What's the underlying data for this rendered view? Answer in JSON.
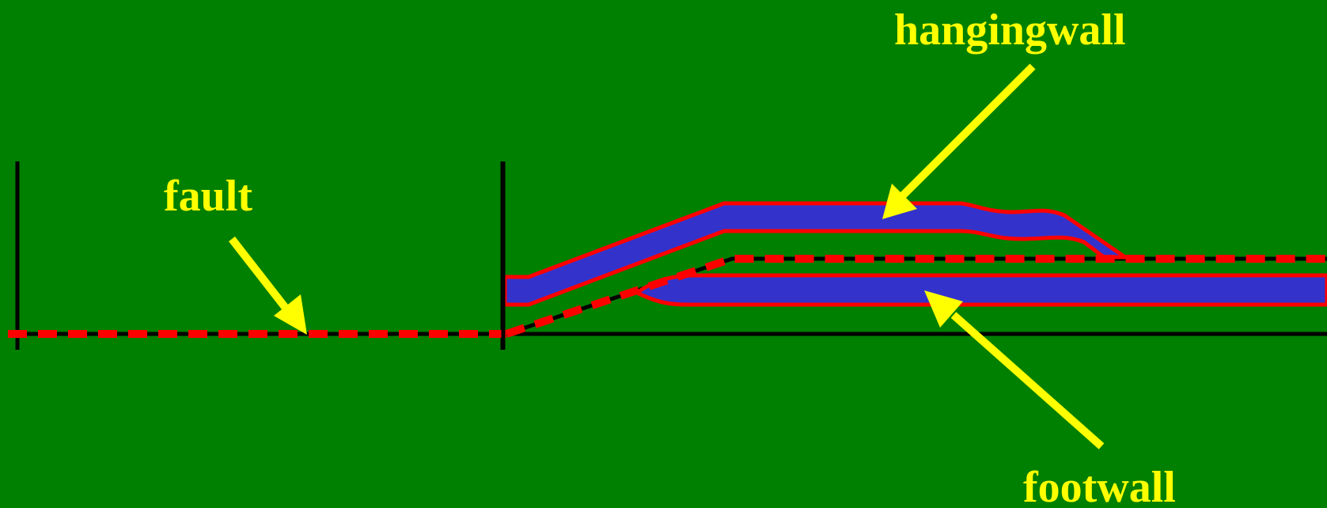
{
  "labels": {
    "hangingwall": "hangingwall",
    "fault": "fault",
    "footwall": "footwall"
  },
  "colors": {
    "background": "#008000",
    "label_and_arrow": "#ffff00",
    "layer_fill": "#3333cc",
    "layer_outline": "#ff0000",
    "fault_dash": "#ff0000",
    "reference_line": "#000000"
  }
}
